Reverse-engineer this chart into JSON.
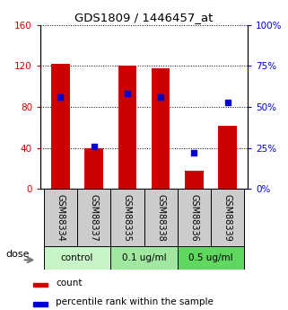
{
  "title": "GDS1809 / 1446457_at",
  "samples": [
    "GSM88334",
    "GSM88337",
    "GSM88335",
    "GSM88338",
    "GSM88336",
    "GSM88339"
  ],
  "counts": [
    122,
    40,
    120,
    118,
    18,
    62
  ],
  "percentiles": [
    56,
    26,
    58,
    56,
    22,
    53
  ],
  "groups": [
    {
      "label": "control",
      "color": "#c8f5c8",
      "start": 0,
      "end": 2
    },
    {
      "label": "0.1 ug/ml",
      "color": "#a0e8a0",
      "start": 2,
      "end": 4
    },
    {
      "label": "0.5 ug/ml",
      "color": "#60d860",
      "start": 4,
      "end": 6
    }
  ],
  "bar_color": "#cc0000",
  "dot_color": "#0000cc",
  "ylim_left": [
    0,
    160
  ],
  "ylim_right": [
    0,
    100
  ],
  "yticks_left": [
    0,
    40,
    80,
    120,
    160
  ],
  "yticks_right": [
    0,
    25,
    50,
    75,
    100
  ],
  "left_tick_color": "#cc0000",
  "right_tick_color": "#0000cc",
  "sample_bg_color": "#cccccc",
  "dose_label": "dose",
  "legend_count": "count",
  "legend_percentile": "percentile rank within the sample"
}
